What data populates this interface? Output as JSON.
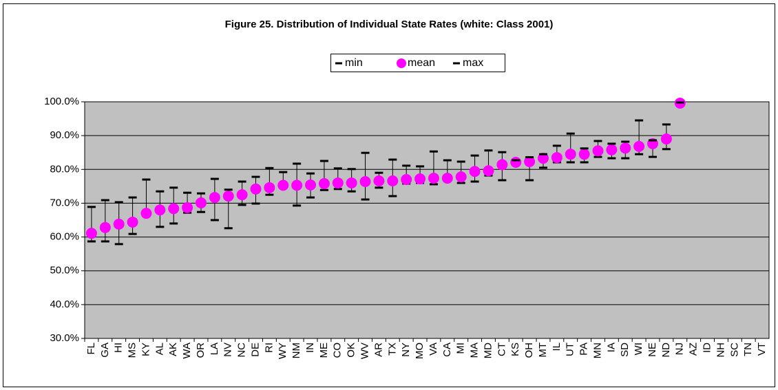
{
  "chart_data": {
    "type": "errorbar",
    "title": "Figure 25. Distribution of Individual State Rates (white: Class 2001)",
    "categories": [
      "FL",
      "GA",
      "HI",
      "MS",
      "KY",
      "AL",
      "AK",
      "WA",
      "OR",
      "LA",
      "NV",
      "NC",
      "DE",
      "RI",
      "WY",
      "NM",
      "IN",
      "ME",
      "CO",
      "OK",
      "WV",
      "AR",
      "TX",
      "NY",
      "MO",
      "VA",
      "CA",
      "MI",
      "MA",
      "MD",
      "CT",
      "KS",
      "OH",
      "MT",
      "IL",
      "UT",
      "PA",
      "MN",
      "IA",
      "SD",
      "WI",
      "NE",
      "ND",
      "NJ",
      "AZ",
      "ID",
      "NH",
      "SC",
      "TN",
      "VT"
    ],
    "series": [
      {
        "name": "min",
        "color": "#000000",
        "marker": "dash",
        "values": [
          58.7,
          58.7,
          57.9,
          60.9,
          66.8,
          63.0,
          64.0,
          67.2,
          67.4,
          65.0,
          62.6,
          69.5,
          69.9,
          72.5,
          75.2,
          69.3,
          71.7,
          73.9,
          74.2,
          73.5,
          71.1,
          74.6,
          72.1,
          75.8,
          76.0,
          75.6,
          77.3,
          76.0,
          76.4,
          78.2,
          76.8,
          82.0,
          76.8,
          80.5,
          82.1,
          82.1,
          82.1,
          83.7,
          83.3,
          83.3,
          84.5,
          83.7,
          86.0,
          99.4,
          null,
          null,
          null,
          null,
          null,
          null
        ]
      },
      {
        "name": "mean",
        "color": "#ff00ff",
        "marker": "circle",
        "values": [
          61.1,
          62.8,
          63.8,
          64.4,
          67.0,
          68.0,
          68.4,
          68.7,
          70.1,
          71.7,
          72.1,
          72.5,
          74.2,
          74.6,
          75.3,
          75.3,
          75.4,
          75.8,
          76.0,
          76.0,
          76.4,
          76.6,
          76.6,
          77.0,
          77.2,
          77.4,
          77.4,
          77.8,
          79.4,
          79.6,
          81.4,
          82.1,
          82.3,
          83.3,
          83.5,
          84.5,
          84.5,
          85.5,
          85.8,
          86.3,
          86.8,
          87.6,
          89.0,
          99.6,
          null,
          null,
          null,
          null,
          null,
          null
        ]
      },
      {
        "name": "max",
        "color": "#000000",
        "marker": "dash",
        "values": [
          68.9,
          70.9,
          70.3,
          71.7,
          77.0,
          73.5,
          74.6,
          73.1,
          72.9,
          77.2,
          74.0,
          76.4,
          77.8,
          80.4,
          79.2,
          81.7,
          78.8,
          82.5,
          80.3,
          80.1,
          84.9,
          79.0,
          82.9,
          81.1,
          80.9,
          85.3,
          82.7,
          82.3,
          84.1,
          85.6,
          85.1,
          82.7,
          83.6,
          84.5,
          87.0,
          90.6,
          86.2,
          88.4,
          87.6,
          88.2,
          94.5,
          88.6,
          93.3,
          99.8,
          null,
          null,
          null,
          null,
          null,
          null
        ]
      }
    ],
    "ylim": [
      30,
      100
    ],
    "yticks": [
      {
        "value": 30,
        "label": "30.0%"
      },
      {
        "value": 40,
        "label": "40.0%"
      },
      {
        "value": 50,
        "label": "50.0%"
      },
      {
        "value": 60,
        "label": "60.0%"
      },
      {
        "value": 70,
        "label": "70.0%"
      },
      {
        "value": 80,
        "label": "80.0%"
      },
      {
        "value": 90,
        "label": "90.0%"
      },
      {
        "value": 100,
        "label": "100.0%"
      }
    ],
    "grid": true,
    "legend": "top",
    "plot_background": "#c0c0c0"
  }
}
